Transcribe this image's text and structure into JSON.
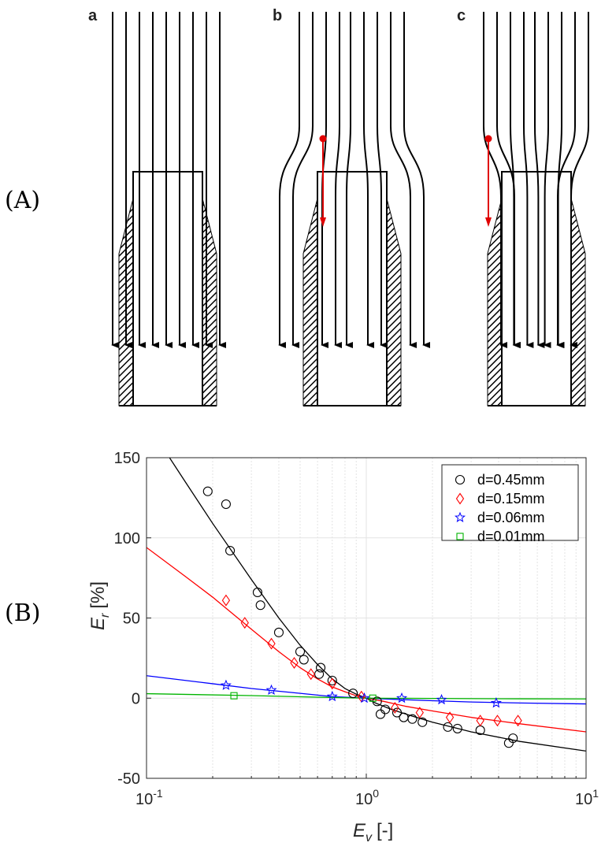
{
  "panels": {
    "top_tag": "(A)",
    "bottom_tag": "(B)",
    "sub_a": "a",
    "sub_b": "b",
    "sub_c": "c"
  },
  "colors": {
    "flow_line": "#000000",
    "trajectory": "#e00000",
    "grid": "#e3e3e3",
    "axis": "#262626"
  },
  "chart_data": {
    "type": "scatter",
    "x_scale": "log",
    "xlim": [
      0.1,
      10
    ],
    "ylim": [
      -50,
      150
    ],
    "xlabel_main": "E",
    "xlabel_sub": "v",
    "xlabel_unit": "[-]",
    "ylabel_main": "E",
    "ylabel_sub": "r",
    "ylabel_unit": "[%]",
    "x_ticks": [
      {
        "value": 0.1,
        "base": "10",
        "exp": "-1"
      },
      {
        "value": 1,
        "base": "10",
        "exp": "0"
      },
      {
        "value": 10,
        "base": "10",
        "exp": "1"
      }
    ],
    "y_ticks": [
      {
        "value": -50,
        "label": "-50"
      },
      {
        "value": 0,
        "label": "0"
      },
      {
        "value": 50,
        "label": "50"
      },
      {
        "value": 100,
        "label": "100"
      },
      {
        "value": 150,
        "label": "150"
      }
    ],
    "grid": true,
    "legend_position": "top-right",
    "series": [
      {
        "name": "d=0.45mm",
        "color": "#000000",
        "marker": "circle",
        "points": [
          [
            0.19,
            129
          ],
          [
            0.23,
            121
          ],
          [
            0.24,
            92
          ],
          [
            0.32,
            66
          ],
          [
            0.33,
            58
          ],
          [
            0.4,
            41
          ],
          [
            0.5,
            29
          ],
          [
            0.52,
            24
          ],
          [
            0.61,
            15
          ],
          [
            0.62,
            19
          ],
          [
            0.7,
            11
          ],
          [
            0.87,
            3
          ],
          [
            1.12,
            -2
          ],
          [
            1.16,
            -10
          ],
          [
            1.22,
            -7
          ],
          [
            1.38,
            -9
          ],
          [
            1.48,
            -12
          ],
          [
            1.62,
            -13
          ],
          [
            1.8,
            -15
          ],
          [
            2.35,
            -18
          ],
          [
            2.6,
            -19
          ],
          [
            3.3,
            -20
          ],
          [
            4.45,
            -28
          ],
          [
            4.65,
            -25
          ]
        ],
        "fit": [
          [
            0.1,
            172
          ],
          [
            0.15,
            135
          ],
          [
            0.2,
            109
          ],
          [
            0.3,
            74
          ],
          [
            0.4,
            50
          ],
          [
            0.5,
            33
          ],
          [
            0.6,
            21
          ],
          [
            0.7,
            12
          ],
          [
            0.8,
            6
          ],
          [
            0.9,
            2.5
          ],
          [
            1.0,
            0
          ],
          [
            1.1,
            -3
          ],
          [
            1.3,
            -7
          ],
          [
            1.6,
            -11
          ],
          [
            2.0,
            -15
          ],
          [
            3.0,
            -21
          ],
          [
            5.0,
            -27
          ],
          [
            10,
            -33
          ]
        ]
      },
      {
        "name": "d=0.15mm",
        "color": "#ff0000",
        "marker": "diamond",
        "points": [
          [
            0.23,
            61
          ],
          [
            0.28,
            47
          ],
          [
            0.37,
            34
          ],
          [
            0.47,
            22
          ],
          [
            0.56,
            15
          ],
          [
            0.7,
            9
          ],
          [
            0.95,
            1
          ],
          [
            1.35,
            -6
          ],
          [
            1.75,
            -9
          ],
          [
            2.4,
            -12
          ],
          [
            3.3,
            -14
          ],
          [
            3.95,
            -14
          ],
          [
            4.9,
            -14
          ]
        ],
        "fit": [
          [
            0.1,
            94
          ],
          [
            0.15,
            76
          ],
          [
            0.2,
            63
          ],
          [
            0.3,
            43
          ],
          [
            0.4,
            29
          ],
          [
            0.5,
            19
          ],
          [
            0.6,
            12
          ],
          [
            0.7,
            7
          ],
          [
            0.8,
            4
          ],
          [
            0.9,
            1.5
          ],
          [
            1.0,
            0
          ],
          [
            1.2,
            -2
          ],
          [
            1.5,
            -5
          ],
          [
            2.0,
            -8
          ],
          [
            3.0,
            -12
          ],
          [
            5.0,
            -16
          ],
          [
            10,
            -21
          ]
        ]
      },
      {
        "name": "d=0.06mm",
        "color": "#0000ff",
        "marker": "star",
        "points": [
          [
            0.23,
            8
          ],
          [
            0.37,
            5
          ],
          [
            0.7,
            1
          ],
          [
            0.98,
            0
          ],
          [
            1.45,
            0
          ],
          [
            2.2,
            -1
          ],
          [
            3.9,
            -3
          ]
        ],
        "fit": [
          [
            0.1,
            14
          ],
          [
            0.2,
            9
          ],
          [
            0.3,
            6
          ],
          [
            0.5,
            3
          ],
          [
            0.7,
            1
          ],
          [
            1.0,
            0
          ],
          [
            1.5,
            -1
          ],
          [
            2.0,
            -1.6
          ],
          [
            3.0,
            -2.4
          ],
          [
            5.0,
            -3
          ],
          [
            10,
            -3.6
          ]
        ]
      },
      {
        "name": "d=0.01mm",
        "color": "#00b400",
        "marker": "square",
        "points": [
          [
            0.25,
            1.5
          ],
          [
            1.07,
            0
          ]
        ],
        "fit": [
          [
            0.1,
            2.8
          ],
          [
            0.3,
            1.6
          ],
          [
            0.7,
            0.4
          ],
          [
            1.0,
            0
          ],
          [
            2.0,
            -0.2
          ],
          [
            5.0,
            -0.4
          ],
          [
            10,
            -0.5
          ]
        ]
      }
    ]
  }
}
